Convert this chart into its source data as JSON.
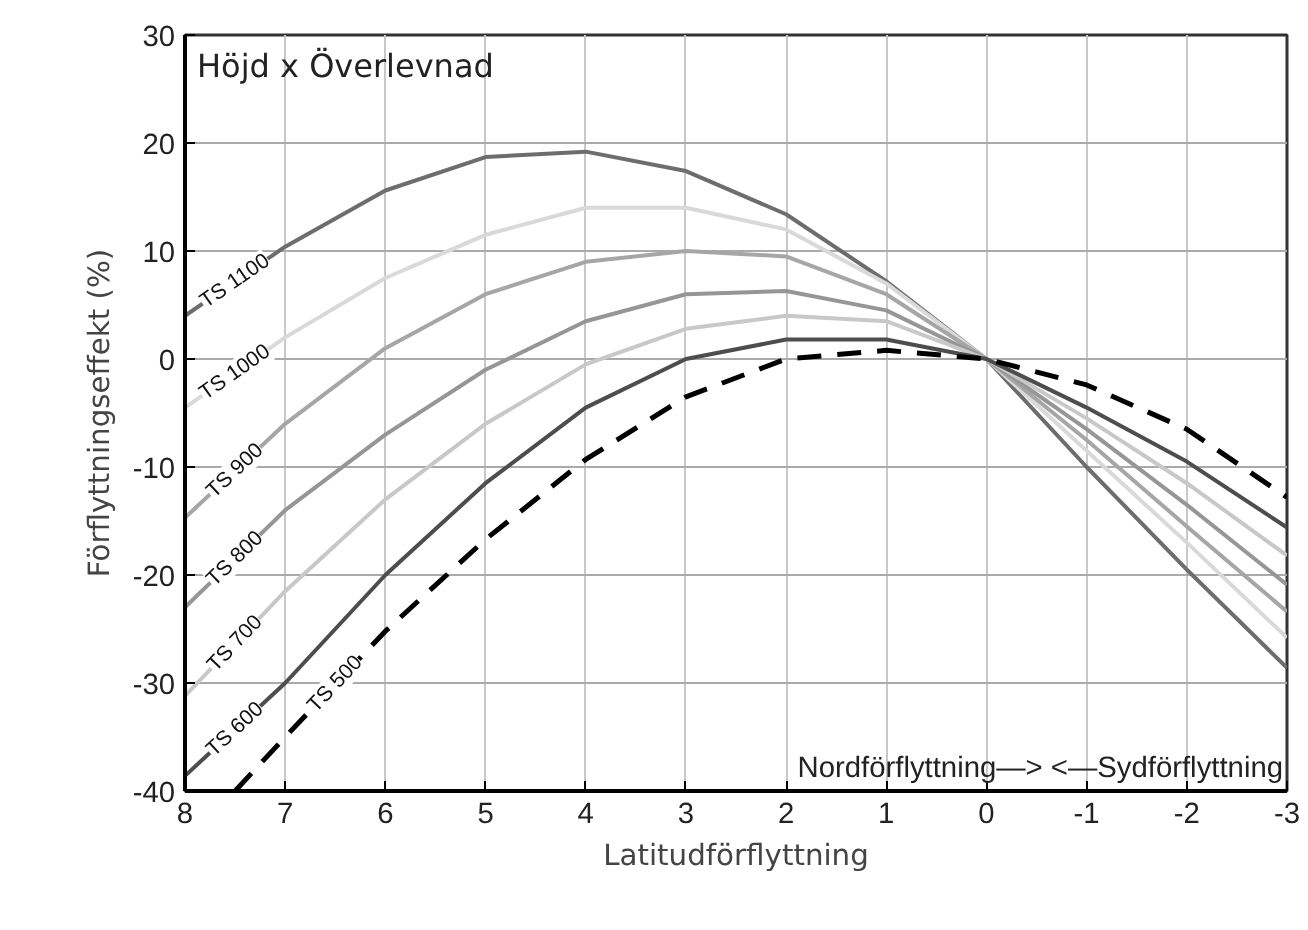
{
  "chart_data": {
    "type": "line",
    "title": "Höjd x Överlevnad",
    "xlabel": "Latitudförflyttning",
    "ylabel": "Förflyttningseffekt (%)",
    "annotations": [
      "Nordförflyttning—> <—Sydförflyttning"
    ],
    "x": [
      8,
      7,
      6,
      5,
      4,
      3,
      2,
      1,
      0,
      -1,
      -2,
      -3
    ],
    "series": [
      {
        "name": "TS 1100",
        "color": "#6d6d6d",
        "values": [
          4,
          10.4,
          15.6,
          18.7,
          19.2,
          17.4,
          13.4,
          7.2,
          0,
          -10,
          -19.5,
          -28.6
        ]
      },
      {
        "name": "TS 1000",
        "color": "#d9d9d9",
        "values": [
          -4.5,
          2,
          7.5,
          11.5,
          14,
          14,
          12,
          7,
          0,
          -8.5,
          -17,
          -25.8
        ]
      },
      {
        "name": "TS 900",
        "color": "#a6a6a6",
        "values": [
          -14.7,
          -6,
          1,
          6,
          9,
          10,
          9.5,
          6,
          0,
          -7.5,
          -15.5,
          -23.4
        ]
      },
      {
        "name": "TS 800",
        "color": "#969696",
        "values": [
          -23,
          -14,
          -7,
          -1,
          3.5,
          6,
          6.3,
          4.5,
          0,
          -6.5,
          -13.5,
          -20.9
        ]
      },
      {
        "name": "TS 700",
        "color": "#c8c8c8",
        "values": [
          -31.2,
          -21.5,
          -13,
          -6,
          -0.5,
          2.8,
          4,
          3.5,
          0,
          -5.5,
          -11.5,
          -18.2
        ]
      },
      {
        "name": "TS 600",
        "color": "#4d4d4d",
        "values": [
          -38.6,
          -30,
          -20,
          -11.5,
          -4.5,
          0,
          1.8,
          1.8,
          0,
          -4.5,
          -9.5,
          -15.6
        ]
      },
      {
        "name": "TS 500",
        "color": "#000000",
        "line_style": "dashed",
        "x": [
          7.5,
          7,
          6,
          5,
          4,
          3,
          2,
          1,
          0,
          -1,
          -2,
          -3
        ],
        "values": [
          -40,
          -35,
          -25.2,
          -16.7,
          -9.3,
          -3.5,
          0,
          0.8,
          0,
          -2.4,
          -6.5,
          -12.8
        ]
      }
    ],
    "xlim": [
      8,
      -3
    ],
    "ylim": [
      -40,
      30
    ],
    "xticks": [
      8,
      7,
      6,
      5,
      4,
      3,
      2,
      1,
      0,
      -1,
      -2,
      -3
    ],
    "yticks": [
      -40,
      -30,
      -20,
      -10,
      0,
      10,
      20,
      30
    ],
    "grid": true,
    "legend": false,
    "marker": "none",
    "line_style": "solid"
  }
}
